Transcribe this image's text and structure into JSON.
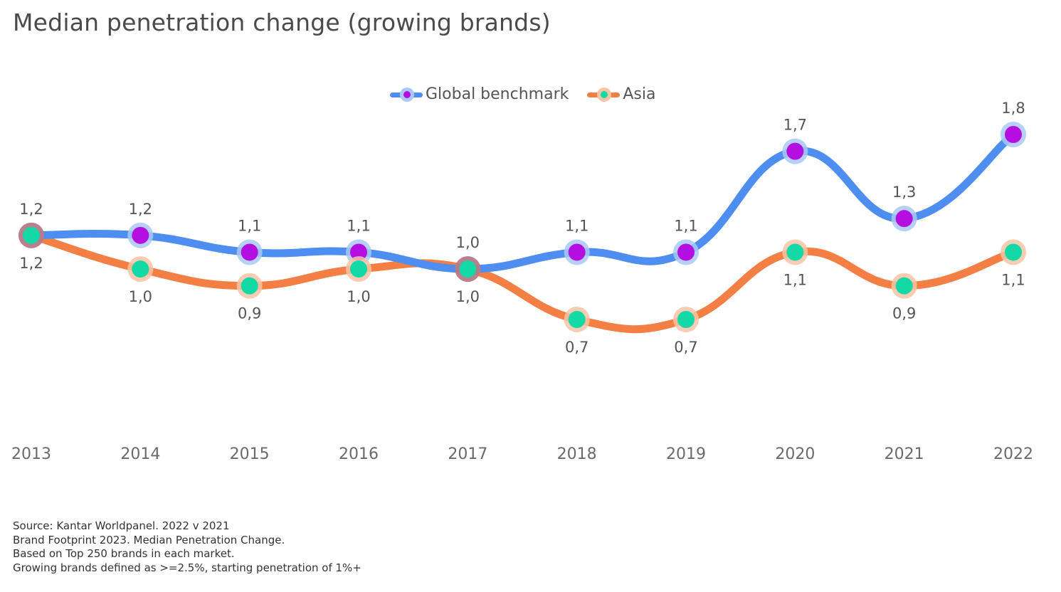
{
  "title": "Median penetration change (growing brands)",
  "legend": {
    "global_label": "Global benchmark",
    "asia_label": "Asia"
  },
  "colors": {
    "global_line": "#4d8ef0",
    "global_halo": "#a9c8f5",
    "global_marker": "#b40ee0",
    "asia_line": "#f47f45",
    "asia_halo": "#f7c4a6",
    "asia_marker": "#12d9a6",
    "overlap_halo": "#b77a8a"
  },
  "chart_data": {
    "type": "line",
    "x": [
      "2013",
      "2014",
      "2015",
      "2016",
      "2017",
      "2018",
      "2019",
      "2020",
      "2021",
      "2022"
    ],
    "series": [
      {
        "name": "Global benchmark",
        "values": [
          1.2,
          1.2,
          1.1,
          1.1,
          1.0,
          1.1,
          1.1,
          1.7,
          1.3,
          1.8
        ],
        "labels": [
          "1,2",
          "1,2",
          "1,1",
          "1,1",
          "1,0",
          "1,1",
          "1,1",
          "1,7",
          "1,3",
          "1,8"
        ]
      },
      {
        "name": "Asia",
        "values": [
          1.2,
          1.0,
          0.9,
          1.0,
          1.0,
          0.7,
          0.7,
          1.1,
          0.9,
          1.1
        ],
        "labels": [
          "1,2",
          "1,0",
          "0,9",
          "1,0",
          "1,0",
          "0,7",
          "0,7",
          "1,1",
          "0,9",
          "1,1"
        ]
      }
    ],
    "title": "Median penetration change (growing brands)",
    "xlabel": "",
    "ylabel": "",
    "grid": false,
    "legend_position": "top-center",
    "data_labels": true
  },
  "footer": {
    "line1": "Source: Kantar Worldpanel. 2022 v 2021",
    "line2": "Brand Footprint 2023. Median Penetration Change.",
    "line3": "Based on Top 250 brands in each market.",
    "line4": "Growing brands defined as >=2.5%, starting penetration of 1%+"
  }
}
